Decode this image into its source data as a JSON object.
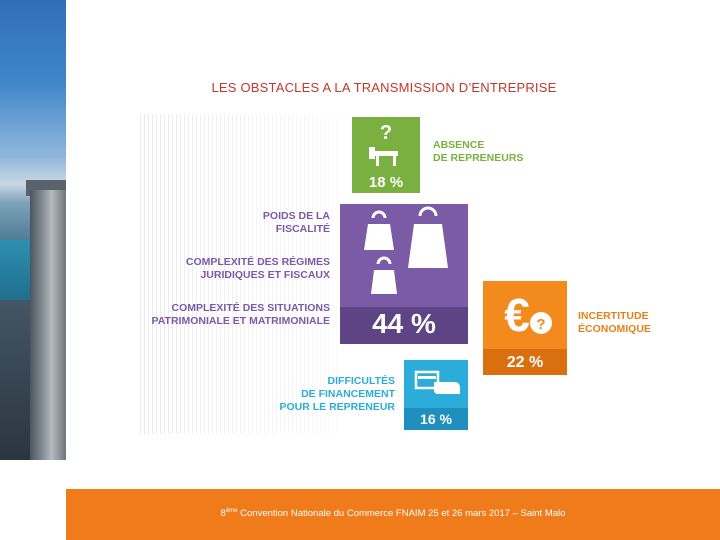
{
  "slide": {
    "title": "LES OBSTACLES A LA TRANSMISSION D’ENTREPRISE"
  },
  "tiles": {
    "absence": {
      "percent": "18 %",
      "label_line1": "ABSENCE",
      "label_line2": "DE REPRENEURS",
      "color": "#7ab040",
      "icon": "question-desk-icon"
    },
    "fiscal": {
      "percent": "44 %",
      "label1_line1": "POIDS DE LA",
      "label1_line2": "FISCALITÉ",
      "label2_line1": "COMPLEXITÉ DES RÉGIMES",
      "label2_line2": "JURIDIQUES ET FISCAUX",
      "label3_line1": "COMPLEXITÉ DES SITUATIONS",
      "label3_line2": "PATRIMONIALE ET MATRIMONIALE",
      "color": "#7b5aa6",
      "icon": "weights-icon"
    },
    "economique": {
      "percent": "22 %",
      "label_line1": "INCERTITUDE",
      "label_line2": "ÉCONOMIQUE",
      "color": "#f28a1e",
      "icon": "euro-question-icon"
    },
    "financement": {
      "percent": "16 %",
      "label_line1": "DIFFICULTÉS",
      "label_line2": "DE FINANCEMENT",
      "label_line3": "POUR LE REPRENEUR",
      "color": "#2bacd9",
      "icon": "card-hand-icon"
    }
  },
  "footer": {
    "ordinal": "8",
    "ordinal_suffix": "ème",
    "text": " Convention Nationale du Commerce FNAIM  25 et 26 mars 2017 – Saint Malo",
    "color": "#f07b1b"
  }
}
